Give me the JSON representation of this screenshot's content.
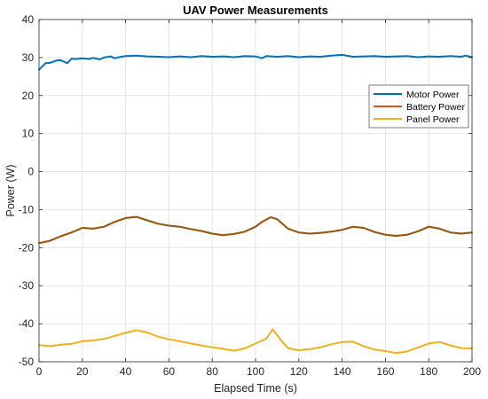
{
  "chart_data": {
    "type": "line",
    "title": "UAV Power Measurements",
    "xlabel": "Elapsed Time (s)",
    "ylabel": "Power (W)",
    "xlim": [
      0,
      200
    ],
    "ylim": [
      -50,
      40
    ],
    "xticks": [
      0,
      20,
      40,
      60,
      80,
      100,
      120,
      140,
      160,
      180,
      200
    ],
    "yticks": [
      -50,
      -40,
      -30,
      -20,
      -10,
      0,
      10,
      20,
      30,
      40
    ],
    "grid": true,
    "legend_position": "top-right",
    "series": [
      {
        "name": "Motor Power",
        "color": "#0072BD",
        "x": [
          0,
          3,
          5,
          8,
          10,
          13,
          15,
          17,
          20,
          23,
          25,
          28,
          30,
          33,
          35,
          38,
          40,
          45,
          50,
          55,
          60,
          65,
          70,
          75,
          80,
          85,
          90,
          95,
          100,
          103,
          105,
          110,
          115,
          120,
          125,
          130,
          135,
          140,
          145,
          150,
          155,
          160,
          165,
          170,
          175,
          180,
          185,
          190,
          195,
          197,
          200
        ],
        "values": [
          26.8,
          28.5,
          28.6,
          29.2,
          29.3,
          28.5,
          29.7,
          29.6,
          29.8,
          29.6,
          29.9,
          29.5,
          30.0,
          30.3,
          29.8,
          30.2,
          30.4,
          30.5,
          30.3,
          30.2,
          30.1,
          30.3,
          30.1,
          30.4,
          30.2,
          30.3,
          30.1,
          30.4,
          30.3,
          29.8,
          30.4,
          30.2,
          30.4,
          30.1,
          30.3,
          30.2,
          30.5,
          30.7,
          30.2,
          30.3,
          30.4,
          30.2,
          30.3,
          30.4,
          30.1,
          30.3,
          30.2,
          30.4,
          30.2,
          30.5,
          30.1
        ]
      },
      {
        "name": "Battery Power",
        "color": "#D95319",
        "x": [
          0,
          5,
          10,
          15,
          20,
          25,
          30,
          35,
          40,
          45,
          50,
          55,
          60,
          65,
          70,
          75,
          80,
          85,
          90,
          95,
          100,
          103,
          107,
          110,
          115,
          120,
          125,
          130,
          135,
          140,
          145,
          150,
          155,
          160,
          165,
          170,
          175,
          180,
          185,
          190,
          195,
          200
        ],
        "values": [
          -18.8,
          -18.2,
          -17.0,
          -16.0,
          -14.8,
          -15.0,
          -14.5,
          -13.2,
          -12.2,
          -11.9,
          -12.8,
          -13.7,
          -14.2,
          -14.5,
          -15.1,
          -15.6,
          -16.3,
          -16.7,
          -16.4,
          -15.8,
          -14.5,
          -13.2,
          -12.0,
          -12.5,
          -15.0,
          -16.0,
          -16.3,
          -16.1,
          -15.8,
          -15.3,
          -14.5,
          -14.8,
          -15.9,
          -16.6,
          -16.9,
          -16.6,
          -15.7,
          -14.5,
          -15.0,
          -16.0,
          -16.3,
          -16.0
        ]
      },
      {
        "name": "Panel Power",
        "color": "#EDB120",
        "x": [
          0,
          5,
          10,
          15,
          20,
          25,
          30,
          35,
          40,
          45,
          50,
          55,
          60,
          65,
          70,
          75,
          80,
          85,
          90,
          95,
          100,
          105,
          108,
          112,
          115,
          120,
          125,
          130,
          135,
          140,
          145,
          150,
          155,
          160,
          165,
          170,
          175,
          180,
          185,
          190,
          195,
          200
        ],
        "values": [
          -45.6,
          -45.9,
          -45.5,
          -45.3,
          -44.6,
          -44.4,
          -44.0,
          -43.2,
          -42.4,
          -41.7,
          -42.3,
          -43.4,
          -44.1,
          -44.6,
          -45.2,
          -45.7,
          -46.2,
          -46.6,
          -47.1,
          -46.5,
          -45.2,
          -43.9,
          -41.5,
          -44.5,
          -46.4,
          -47.0,
          -46.7,
          -46.2,
          -45.4,
          -44.8,
          -44.7,
          -45.9,
          -46.8,
          -47.2,
          -47.7,
          -47.3,
          -46.3,
          -45.2,
          -44.8,
          -45.7,
          -46.4,
          -46.5
        ]
      }
    ]
  }
}
